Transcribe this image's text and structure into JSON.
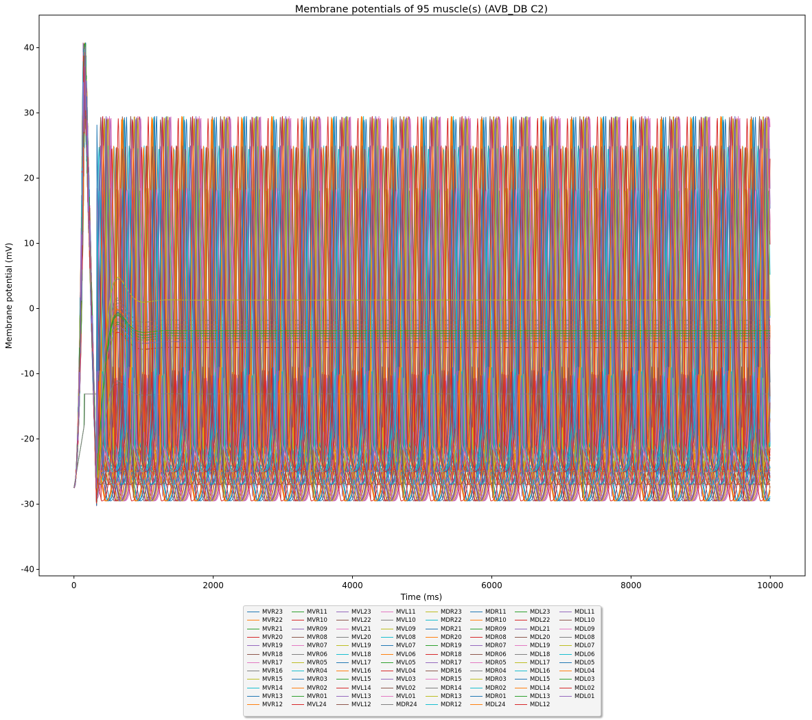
{
  "chart_data": {
    "type": "line",
    "title": "Membrane potentials of 95 muscle(s) (AVB_DB C2)",
    "xlabel": "Time (ms)",
    "ylabel": "Membrane potential (mV)",
    "xlim": [
      -500,
      10500
    ],
    "ylim": [
      -41,
      45
    ],
    "xticks": [
      0,
      2000,
      4000,
      6000,
      8000,
      10000
    ],
    "yticks": [
      -40,
      -30,
      -20,
      -10,
      0,
      10,
      20,
      30,
      40
    ],
    "grid": false,
    "legend_position": "below-center",
    "legend_columns": 8,
    "palette": [
      "#1f77b4",
      "#ff7f0e",
      "#2ca02c",
      "#d62728",
      "#9467bd",
      "#8c564b",
      "#e377c2",
      "#7f7f7f",
      "#bcbd22",
      "#17becf"
    ],
    "oscillation_summary": {
      "initial_value_mV": -27.5,
      "initial_peak_mV": 40.8,
      "initial_peak_time_ms": 150,
      "spike_peak_mV": [
        29.5,
        25,
        18.5
      ],
      "trough_mV": [
        -29.5,
        -27,
        -25
      ],
      "approx_period_ms": 430,
      "plateau_levels_mV": [
        1.3,
        -1.8,
        -2.5,
        -3.0,
        -3.4,
        -3.8,
        -4.2,
        -4.6,
        -5.1,
        -6.0,
        -13.1
      ],
      "end_time_ms": 10000
    },
    "series": [
      {
        "name": "MVR23"
      },
      {
        "name": "MVR22"
      },
      {
        "name": "MVR21"
      },
      {
        "name": "MVR20"
      },
      {
        "name": "MVR19"
      },
      {
        "name": "MVR18"
      },
      {
        "name": "MVR17"
      },
      {
        "name": "MVR16"
      },
      {
        "name": "MVR15"
      },
      {
        "name": "MVR14"
      },
      {
        "name": "MVR13"
      },
      {
        "name": "MVR12"
      },
      {
        "name": "MVR11"
      },
      {
        "name": "MVR10"
      },
      {
        "name": "MVR09"
      },
      {
        "name": "MVR08"
      },
      {
        "name": "MVR07"
      },
      {
        "name": "MVR06"
      },
      {
        "name": "MVR05"
      },
      {
        "name": "MVR04"
      },
      {
        "name": "MVR03"
      },
      {
        "name": "MVR02"
      },
      {
        "name": "MVR01"
      },
      {
        "name": "MVL24"
      },
      {
        "name": "MVL23"
      },
      {
        "name": "MVL22"
      },
      {
        "name": "MVL21"
      },
      {
        "name": "MVL20"
      },
      {
        "name": "MVL19"
      },
      {
        "name": "MVL18"
      },
      {
        "name": "MVL17"
      },
      {
        "name": "MVL16"
      },
      {
        "name": "MVL15"
      },
      {
        "name": "MVL14"
      },
      {
        "name": "MVL13"
      },
      {
        "name": "MVL12"
      },
      {
        "name": "MVL11"
      },
      {
        "name": "MVL10"
      },
      {
        "name": "MVL09"
      },
      {
        "name": "MVL08"
      },
      {
        "name": "MVL07"
      },
      {
        "name": "MVL06"
      },
      {
        "name": "MVL05"
      },
      {
        "name": "MVL04"
      },
      {
        "name": "MVL03"
      },
      {
        "name": "MVL02"
      },
      {
        "name": "MVL01"
      },
      {
        "name": "MDR24"
      },
      {
        "name": "MDR23"
      },
      {
        "name": "MDR22"
      },
      {
        "name": "MDR21"
      },
      {
        "name": "MDR20"
      },
      {
        "name": "MDR19"
      },
      {
        "name": "MDR18"
      },
      {
        "name": "MDR17"
      },
      {
        "name": "MDR16"
      },
      {
        "name": "MDR15"
      },
      {
        "name": "MDR14"
      },
      {
        "name": "MDR13"
      },
      {
        "name": "MDR12"
      },
      {
        "name": "MDR11"
      },
      {
        "name": "MDR10"
      },
      {
        "name": "MDR09"
      },
      {
        "name": "MDR08"
      },
      {
        "name": "MDR07"
      },
      {
        "name": "MDR06"
      },
      {
        "name": "MDR05"
      },
      {
        "name": "MDR04"
      },
      {
        "name": "MDR03"
      },
      {
        "name": "MDR02"
      },
      {
        "name": "MDR01"
      },
      {
        "name": "MDL24"
      },
      {
        "name": "MDL23"
      },
      {
        "name": "MDL22"
      },
      {
        "name": "MDL21"
      },
      {
        "name": "MDL20"
      },
      {
        "name": "MDL19"
      },
      {
        "name": "MDL18"
      },
      {
        "name": "MDL17"
      },
      {
        "name": "MDL16"
      },
      {
        "name": "MDL15"
      },
      {
        "name": "MDL14"
      },
      {
        "name": "MDL13"
      },
      {
        "name": "MDL12"
      },
      {
        "name": "MDL11"
      },
      {
        "name": "MDL10"
      },
      {
        "name": "MDL09"
      },
      {
        "name": "MDL08"
      },
      {
        "name": "MDL07"
      },
      {
        "name": "MDL06"
      },
      {
        "name": "MDL05"
      },
      {
        "name": "MDL04"
      },
      {
        "name": "MDL03"
      },
      {
        "name": "MDL02"
      },
      {
        "name": "MDL01"
      }
    ]
  }
}
